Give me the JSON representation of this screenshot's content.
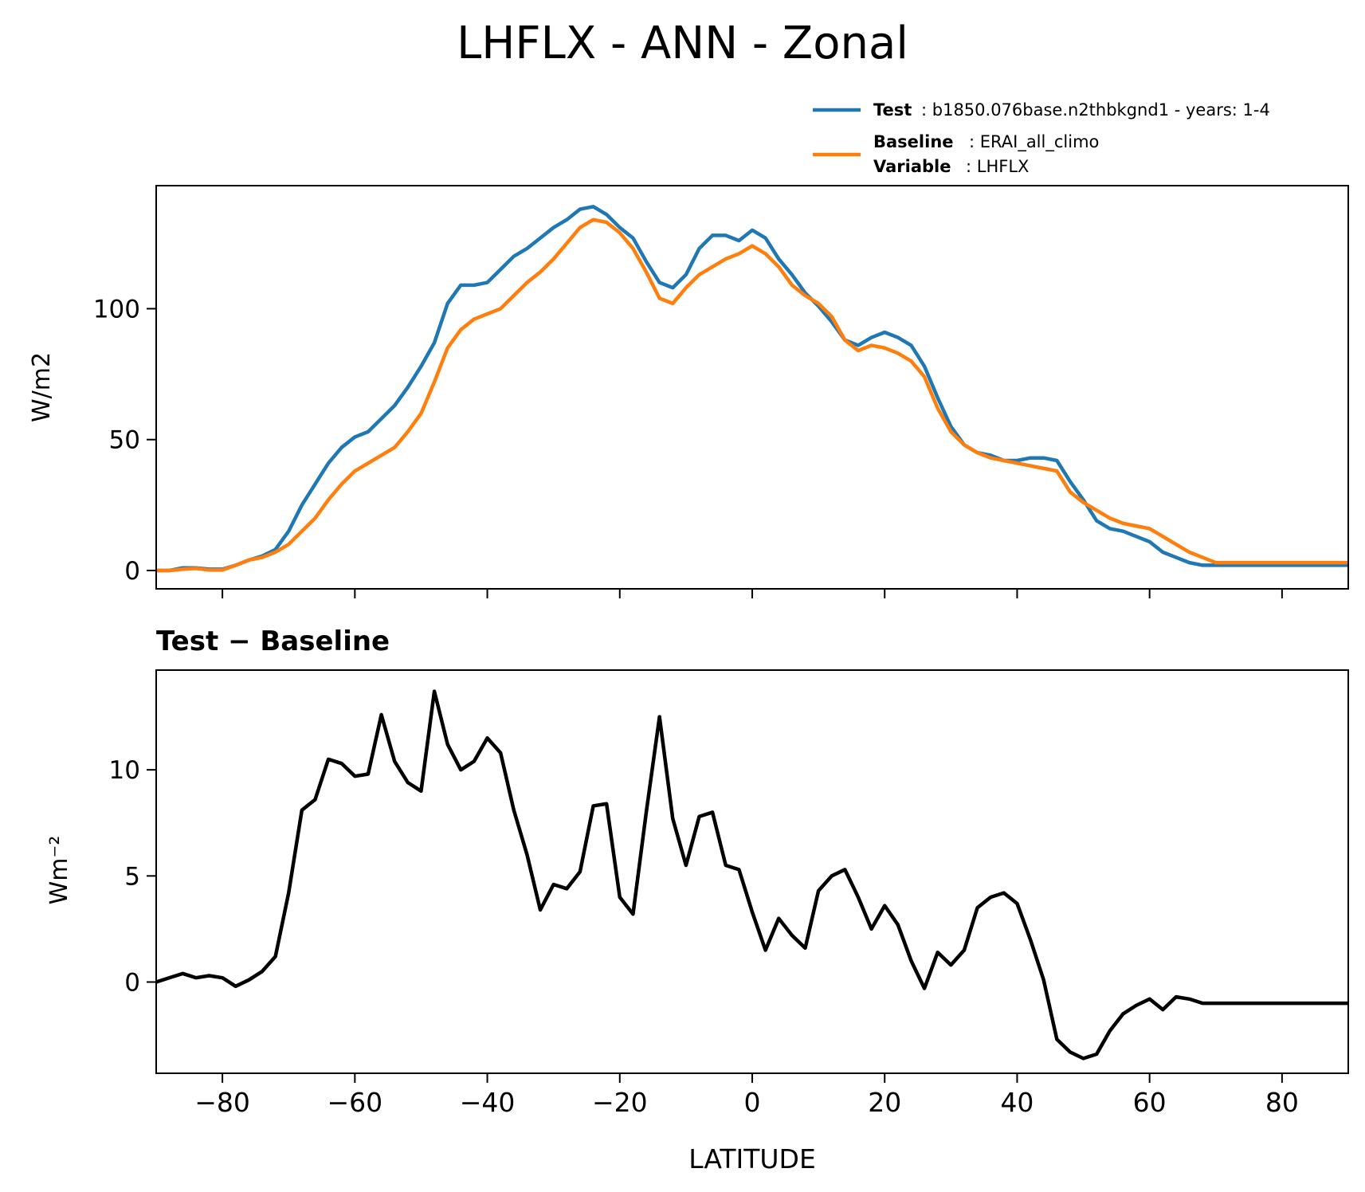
{
  "figure": {
    "title": "LHFLX - ANN - Zonal"
  },
  "legend": {
    "test_label": "Test",
    "test_text": ": b1850.076base.n2thbkgnd1 - years: 1-4",
    "baseline_label": "Baseline",
    "baseline_text": ": ERAI_all_climo",
    "variable_label": "Variable",
    "variable_text": ": LHFLX"
  },
  "colors": {
    "test": "#1f77b4",
    "baseline": "#ff7f0e",
    "diff": "#000000"
  },
  "chart_data": [
    {
      "type": "line",
      "title": "",
      "xlabel": "",
      "ylabel": "W/m2",
      "xlim": [
        -90,
        90
      ],
      "ylim": [
        -7,
        147
      ],
      "yticks": [
        0,
        50,
        100
      ],
      "ytick_labels": [
        "0",
        "50",
        "100"
      ],
      "xticks": [
        -80,
        -60,
        -40,
        -20,
        0,
        20,
        40,
        60,
        80
      ],
      "grid": false,
      "legend_position": "top-right",
      "x": [
        -90,
        -88,
        -86,
        -84,
        -82,
        -80,
        -78,
        -76,
        -74,
        -72,
        -70,
        -68,
        -66,
        -64,
        -62,
        -60,
        -58,
        -56,
        -54,
        -52,
        -50,
        -48,
        -46,
        -44,
        -42,
        -40,
        -38,
        -36,
        -34,
        -32,
        -30,
        -28,
        -26,
        -24,
        -22,
        -20,
        -18,
        -16,
        -14,
        -12,
        -10,
        -8,
        -6,
        -4,
        -2,
        0,
        2,
        4,
        6,
        8,
        10,
        12,
        14,
        16,
        18,
        20,
        22,
        24,
        26,
        28,
        30,
        32,
        34,
        36,
        38,
        40,
        42,
        44,
        46,
        48,
        50,
        52,
        54,
        56,
        58,
        60,
        62,
        64,
        66,
        68,
        70,
        72,
        74,
        76,
        78,
        80,
        82,
        84,
        86,
        88,
        90
      ],
      "series": [
        {
          "name": "Test",
          "values": [
            0,
            0,
            1,
            1,
            0.5,
            0.5,
            2,
            4,
            5.5,
            8,
            15,
            25,
            33,
            41,
            47,
            51,
            53,
            58,
            63,
            70,
            78,
            87,
            102,
            109,
            109,
            110,
            115,
            120,
            123,
            127,
            131,
            134,
            138,
            139,
            136,
            131,
            127,
            118,
            110,
            108,
            113,
            123,
            128,
            128,
            126,
            130,
            127,
            119,
            113,
            106,
            101,
            95,
            88,
            86,
            89,
            91,
            89,
            86,
            78,
            66,
            55,
            48,
            45,
            44,
            42,
            42,
            43,
            43,
            42,
            34,
            27,
            19,
            16,
            15,
            13,
            11,
            7,
            5,
            3,
            2,
            2,
            2,
            2,
            2,
            2,
            2,
            2,
            2,
            2,
            2,
            2
          ]
        },
        {
          "name": "Baseline",
          "values": [
            0,
            0,
            0.5,
            0.8,
            0.2,
            0.2,
            2,
            4,
            5,
            7,
            10,
            15,
            20,
            27,
            33,
            38,
            41,
            44,
            47,
            53,
            60,
            72,
            85,
            92,
            96,
            98,
            100,
            105,
            110,
            114,
            119,
            125,
            131,
            134,
            133,
            129,
            123,
            114,
            104,
            102,
            108,
            113,
            116,
            119,
            121,
            124,
            121,
            116,
            109,
            105,
            102,
            97,
            88,
            84,
            86,
            85,
            83,
            80,
            74,
            62,
            53,
            48,
            45,
            43,
            42,
            41,
            40,
            39,
            38,
            30,
            26,
            23,
            20,
            18,
            17,
            16,
            13,
            10,
            7,
            5,
            3,
            3,
            3,
            3,
            3,
            3,
            3,
            3,
            3,
            3,
            3
          ]
        }
      ]
    },
    {
      "type": "line",
      "title": "Test − Baseline",
      "xlabel": "LATITUDE",
      "ylabel": "Wm⁻²",
      "xlim": [
        -90,
        90
      ],
      "ylim": [
        -4.3,
        14.7
      ],
      "yticks": [
        0,
        5,
        10
      ],
      "ytick_labels": [
        "0",
        "5",
        "10"
      ],
      "xticks": [
        -80,
        -60,
        -40,
        -20,
        0,
        20,
        40,
        60,
        80
      ],
      "xtick_labels": [
        "−80",
        "−60",
        "−40",
        "−20",
        "0",
        "20",
        "40",
        "60",
        "80"
      ],
      "grid": false,
      "x": [
        -90,
        -88,
        -86,
        -84,
        -82,
        -80,
        -78,
        -76,
        -74,
        -72,
        -70,
        -68,
        -66,
        -64,
        -62,
        -60,
        -58,
        -56,
        -54,
        -52,
        -50,
        -48,
        -46,
        -44,
        -42,
        -40,
        -38,
        -36,
        -34,
        -32,
        -30,
        -28,
        -26,
        -24,
        -22,
        -20,
        -18,
        -16,
        -14,
        -12,
        -10,
        -8,
        -6,
        -4,
        -2,
        0,
        2,
        4,
        6,
        8,
        10,
        12,
        14,
        16,
        18,
        20,
        22,
        24,
        26,
        28,
        30,
        32,
        34,
        36,
        38,
        40,
        42,
        44,
        46,
        48,
        50,
        52,
        54,
        56,
        58,
        60,
        62,
        64,
        66,
        68,
        70,
        72,
        74,
        76,
        78,
        80,
        82,
        84,
        86,
        88,
        90
      ],
      "series": [
        {
          "name": "",
          "values": [
            0,
            0.2,
            0.4,
            0.2,
            0.3,
            0.2,
            -0.2,
            0.1,
            0.5,
            1.2,
            4.2,
            8.1,
            8.6,
            10.5,
            10.3,
            9.7,
            9.8,
            12.6,
            10.4,
            9.4,
            9.0,
            13.7,
            11.2,
            10.0,
            10.4,
            11.5,
            10.8,
            8.1,
            6.0,
            3.4,
            4.6,
            4.4,
            5.2,
            8.3,
            8.4,
            4.0,
            3.2,
            8.0,
            12.5,
            7.7,
            5.5,
            7.8,
            8.0,
            5.5,
            5.3,
            3.3,
            1.5,
            3.0,
            2.2,
            1.6,
            4.3,
            5.0,
            5.3,
            4.0,
            2.5,
            3.6,
            2.7,
            1.0,
            -0.3,
            1.4,
            0.8,
            1.5,
            3.5,
            4.0,
            4.2,
            3.7,
            2.0,
            0.1,
            -2.7,
            -3.3,
            -3.6,
            -3.4,
            -2.3,
            -1.5,
            -1.1,
            -0.8,
            -1.3,
            -0.7,
            -0.8,
            -1.0,
            -1.0,
            -1.0,
            -1.0,
            -1.0,
            -1.0,
            -1.0,
            -1.0,
            -1.0,
            -1.0,
            -1.0,
            -1.0
          ]
        }
      ]
    }
  ]
}
